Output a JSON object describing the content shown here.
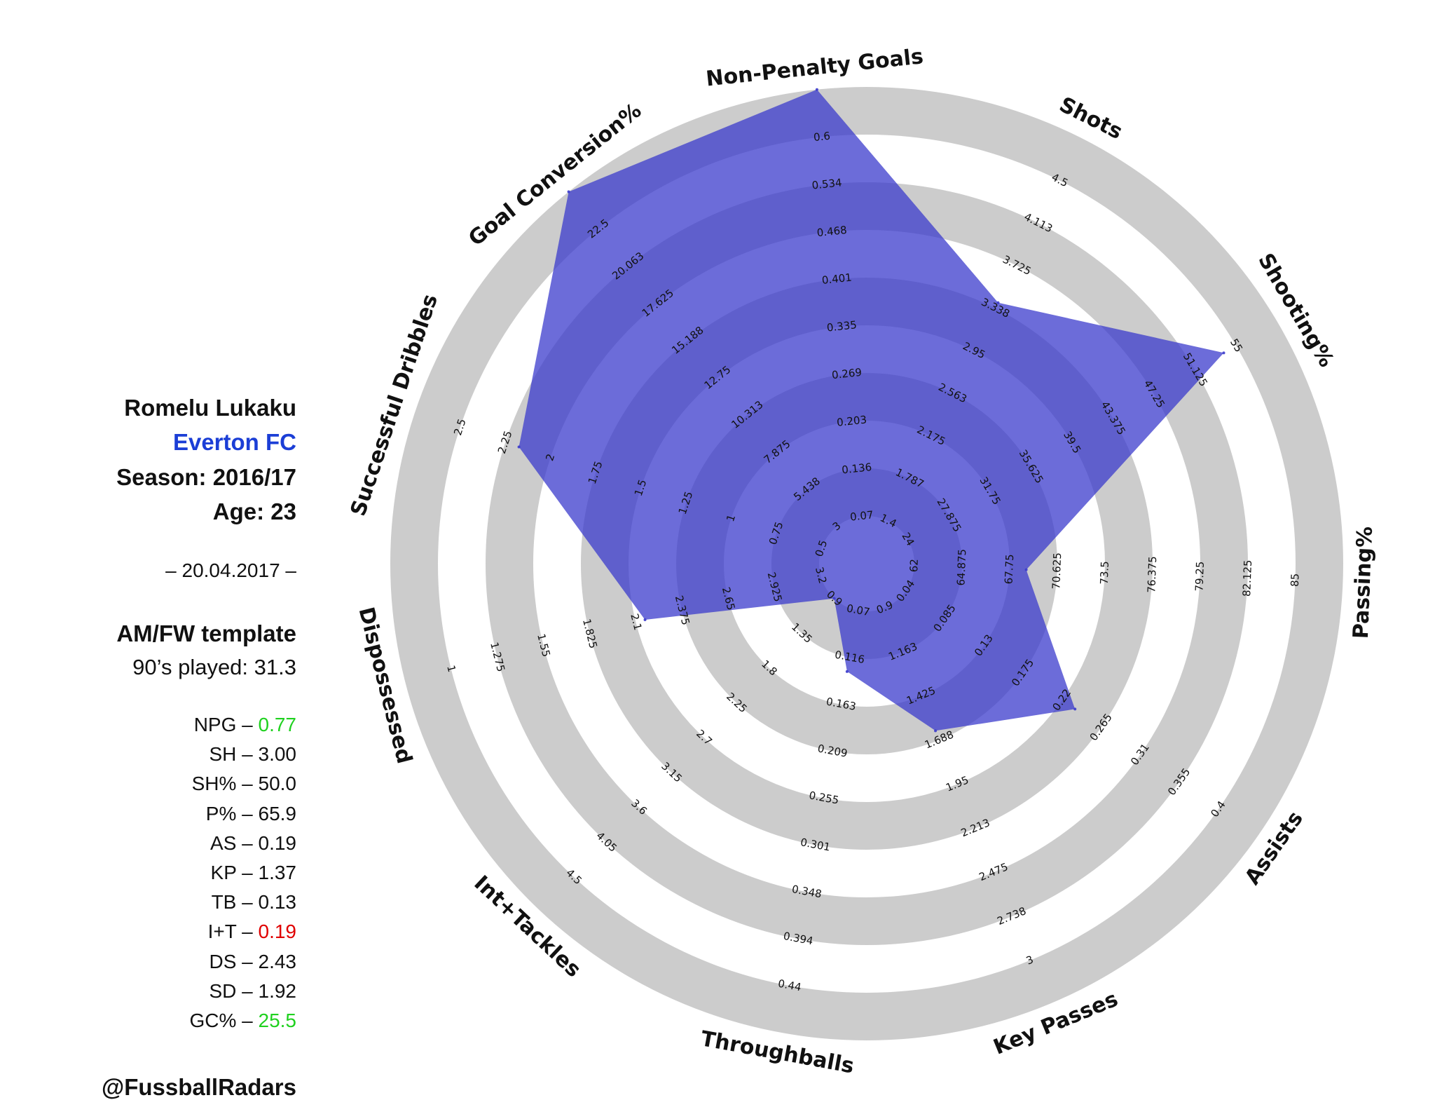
{
  "player": {
    "name": "Romelu Lukaku",
    "club": "Everton FC",
    "season": "Season: 2016/17",
    "age": "Age: 23",
    "date": "– 20.04.2017 –",
    "template": "AM/FW template",
    "played": "90’s played: 31.3",
    "handle": "@FussballRadars"
  },
  "colors": {
    "club": "#1b3ed6",
    "good": "#1fd11f",
    "bad": "#e00000",
    "ring_gray": "#cccccc",
    "polygon": "#3b3bcc"
  },
  "stats": [
    {
      "label": "NPG –",
      "value": "0.77",
      "color": "good"
    },
    {
      "label": "SH –",
      "value": "3.00",
      "color": null
    },
    {
      "label": "SH% –",
      "value": "50.0",
      "color": null
    },
    {
      "label": "P% –",
      "value": "65.9",
      "color": null
    },
    {
      "label": "AS –",
      "value": "0.19",
      "color": null
    },
    {
      "label": "KP –",
      "value": "1.37",
      "color": null
    },
    {
      "label": "TB –",
      "value": "0.13",
      "color": null
    },
    {
      "label": "I+T –",
      "value": "0.19",
      "color": "bad"
    },
    {
      "label": "DS –",
      "value": "2.43",
      "color": null
    },
    {
      "label": "SD –",
      "value": "1.92",
      "color": null
    },
    {
      "label": "GC% –",
      "value": "25.5",
      "color": "good"
    }
  ],
  "chart_data": {
    "type": "radar",
    "axes": [
      {
        "label": "Non-Penalty Goals",
        "ticks": [
          "0.07",
          "0.136",
          "0.203",
          "0.269",
          "0.335",
          "0.401",
          "0.468",
          "0.534",
          "0.6"
        ],
        "value": 0.77,
        "level": 9
      },
      {
        "label": "Shots",
        "ticks": [
          "1.4",
          "1.787",
          "2.175",
          "2.563",
          "2.95",
          "3.338",
          "3.725",
          "4.113",
          "4.5"
        ],
        "value": 3.0,
        "level": 5.13
      },
      {
        "label": "Shooting%",
        "ticks": [
          "24",
          "27.875",
          "31.75",
          "35.625",
          "39.5",
          "43.375",
          "47.25",
          "51.125",
          "55"
        ],
        "value": 50.0,
        "level": 7.7
      },
      {
        "label": "Passing%",
        "ticks": [
          "62",
          "64.875",
          "67.75",
          "70.625",
          "73.5",
          "76.375",
          "79.25",
          "82.125",
          "85"
        ],
        "value": 65.9,
        "level": 2.35
      },
      {
        "label": "Assists",
        "ticks": [
          "0.04",
          "0.085",
          "0.13",
          "0.175",
          "0.22",
          "0.265",
          "0.31",
          "0.355",
          "0.4"
        ],
        "value": 0.19,
        "level": 4.33
      },
      {
        "label": "Key Passes",
        "ticks": [
          "0.9",
          "1.163",
          "1.425",
          "1.688",
          "1.95",
          "2.213",
          "2.475",
          "2.738",
          "3"
        ],
        "value": 1.37,
        "level": 2.79
      },
      {
        "label": "Throughballs",
        "ticks": [
          "0.07",
          "0.116",
          "0.163",
          "0.209",
          "0.255",
          "0.301",
          "0.348",
          "0.394",
          "0.44"
        ],
        "value": 0.13,
        "level": 1.3
      },
      {
        "label": "Int+Tackles",
        "ticks": [
          "0.9",
          "1.35",
          "1.8",
          "2.25",
          "2.7",
          "3.15",
          "3.6",
          "4.05",
          "4.5"
        ],
        "value": 0.19,
        "level": 0
      },
      {
        "label": "Dispossessed",
        "ticks": [
          "3.2",
          "2.925",
          "2.65",
          "2.375",
          "2.1",
          "1.825",
          "1.55",
          "1.275",
          "1"
        ],
        "value": 2.43,
        "level": 3.8
      },
      {
        "label": "Successful Dribbles",
        "ticks": [
          "0.5",
          "0.75",
          "1",
          "1.25",
          "1.5",
          "1.75",
          "2",
          "2.25",
          "2.5"
        ],
        "value": 1.92,
        "level": 6.7
      },
      {
        "label": "Goal Conversion%",
        "ticks": [
          "3",
          "5.438",
          "7.875",
          "10.313",
          "12.75",
          "15.188",
          "17.625",
          "20.063",
          "22.5"
        ],
        "value": 25.5,
        "level": 9
      }
    ],
    "levels": 9,
    "grid": "alternating gray rings"
  }
}
